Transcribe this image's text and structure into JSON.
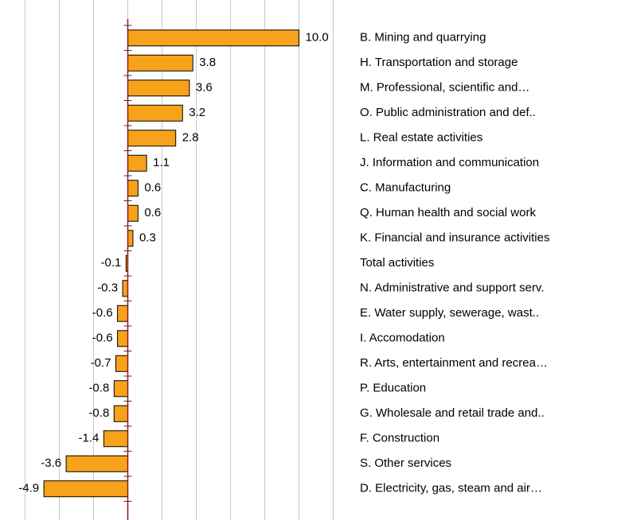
{
  "chart_data": {
    "type": "bar",
    "orientation": "horizontal",
    "categories": [
      "B. Mining and quarrying",
      "H. Transportation and storage",
      "M. Professional, scientific and…",
      "O. Public administration and def..",
      "L. Real estate activities",
      "J. Information and communication",
      "C. Manufacturing",
      "Q. Human health and social work",
      "K. Financial and insurance activities",
      "Total activities",
      "N. Administrative and support serv.",
      "E. Water supply, sewerage, wast..",
      "I. Accomodation",
      "R. Arts, entertainment and recrea…",
      "P. Education",
      "G. Wholesale and retail trade and..",
      "F. Construction",
      "S. Other services",
      "D. Electricity, gas, steam and air…"
    ],
    "values": [
      10.0,
      3.8,
      3.6,
      3.2,
      2.8,
      1.1,
      0.6,
      0.6,
      0.3,
      -0.1,
      -0.3,
      -0.6,
      -0.6,
      -0.7,
      -0.8,
      -0.8,
      -1.4,
      -3.6,
      -4.9
    ],
    "value_labels": [
      "10.0",
      "3.8",
      "3.6",
      "3.2",
      "2.8",
      "1.1",
      "0.6",
      "0.6",
      "0.3",
      "-0.1",
      "-0.3",
      "-0.6",
      "-0.6",
      "-0.7",
      "-0.8",
      "-0.8",
      "-1.4",
      "-3.6",
      "-4.9"
    ],
    "color": "#f7a21b",
    "xlim": [
      -7,
      13
    ],
    "xticks": [
      -6,
      -4,
      -2,
      0,
      2,
      4,
      6,
      8,
      10,
      12
    ],
    "grid": true
  }
}
